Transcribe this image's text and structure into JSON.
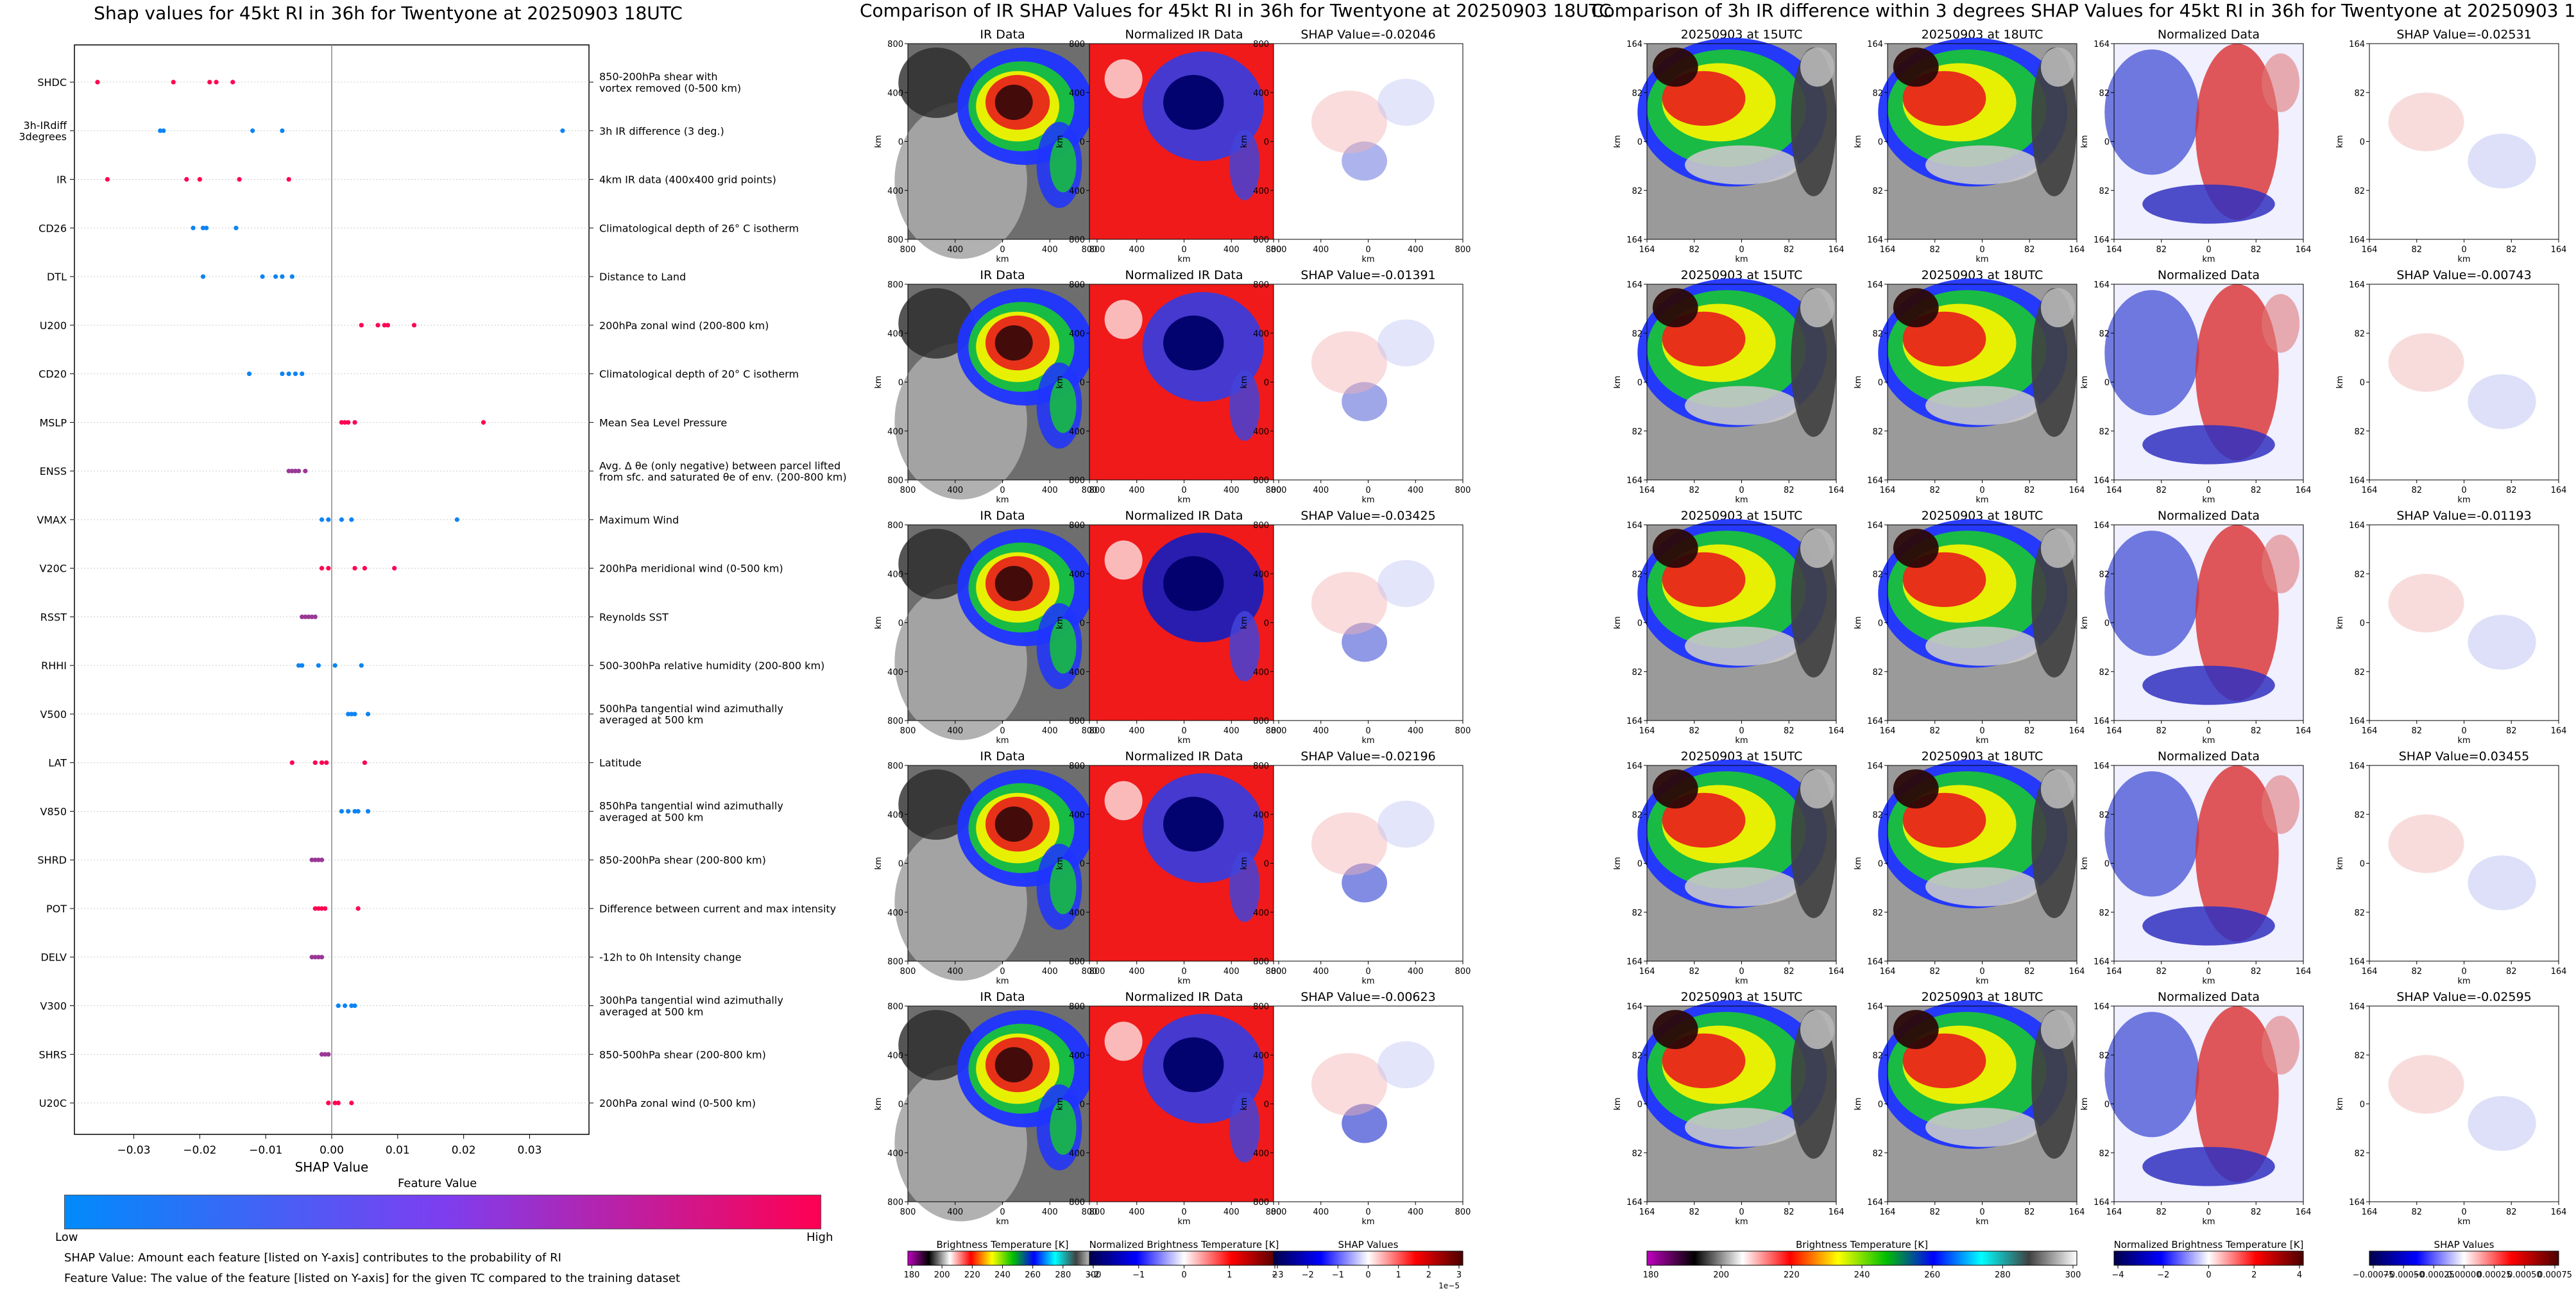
{
  "shap_panel": {
    "title": "Shap values for 45kt RI in 36h for Twentyone at 20250903 18UTC",
    "xlabel": "SHAP Value",
    "colorbar": {
      "title": "Feature Value",
      "low": "Low",
      "high": "High",
      "colors": [
        "#008bfb",
        "#ff0052"
      ]
    },
    "notes": [
      "SHAP Value: Amount each feature [listed on Y-axis] contributes to the probability of RI",
      "Feature Value: The value of the feature [listed on Y-axis] for the given TC compared to the training dataset"
    ]
  },
  "ir_panel": {
    "title": "Comparison of IR SHAP Values for 45kt RI in 36h for Twentyone at 20250903 18UTC",
    "col_titles": [
      "IR Data",
      "Normalized IR Data"
    ],
    "shap_titles": [
      "SHAP Value=-0.02046",
      "SHAP Value=-0.01391",
      "SHAP Value=-0.03425",
      "SHAP Value=-0.02196",
      "SHAP Value=-0.00623"
    ],
    "axis_label": "km",
    "ticks_x": [
      "800",
      "400",
      "0",
      "400",
      "800"
    ],
    "ticks_y": [
      "800",
      "400",
      "0",
      "400",
      "800"
    ],
    "colorbars": [
      {
        "label": "Brightness Temperature [K]",
        "ticks": [
          "180",
          "200",
          "220",
          "240",
          "260",
          "280",
          "300"
        ]
      },
      {
        "label": "Normalized Brightness Temperature [K]",
        "ticks": [
          "−2",
          "−1",
          "0",
          "1",
          "2"
        ]
      },
      {
        "label": "SHAP Values",
        "ticks": [
          "−3",
          "−2",
          "−1",
          "0",
          "1",
          "2",
          "3"
        ],
        "offset": "1e−5"
      }
    ]
  },
  "diff_panel": {
    "title": "Comparison of 3h IR difference within 3 degrees SHAP Values for 45kt RI in 36h for Twentyone at 20250903 18UTC",
    "col_titles": [
      "20250903 at 15UTC",
      "20250903 at 18UTC",
      "Normalized Data"
    ],
    "shap_titles": [
      "SHAP Value=-0.02531",
      "SHAP Value=-0.00743",
      "SHAP Value=-0.01193",
      "SHAP Value=0.03455",
      "SHAP Value=-0.02595"
    ],
    "axis_label": "km",
    "ticks_x": [
      "164",
      "82",
      "0",
      "82",
      "164"
    ],
    "ticks_y": [
      "164",
      "82",
      "0",
      "82",
      "164"
    ],
    "colorbars": [
      {
        "label": "Brightness Temperature [K]",
        "ticks": [
          "180",
          "200",
          "220",
          "240",
          "260",
          "280",
          "300"
        ]
      },
      {
        "label": "Normalized Brightness Temperature [K]",
        "ticks": [
          "−4",
          "−2",
          "0",
          "2",
          "4"
        ]
      },
      {
        "label": "SHAP Values",
        "ticks": [
          "−0.00075",
          "−0.00050",
          "−0.00025",
          "0.00000",
          "0.00025",
          "0.00050",
          "0.00075"
        ]
      }
    ]
  },
  "chart_data": [
    {
      "type": "scatter",
      "title": "Shap values for 45kt RI in 36h for Twentyone at 20250903 18UTC",
      "xlabel": "SHAP Value",
      "ylabel": "",
      "xlim": [
        -0.039,
        0.039
      ],
      "xticks": [
        -0.03,
        -0.02,
        -0.01,
        0.0,
        0.01,
        0.02,
        0.03
      ],
      "xtick_labels": [
        "−0.03",
        "−0.02",
        "−0.01",
        "0.00",
        "0.01",
        "0.02",
        "0.03"
      ],
      "legend": "colorbar-bottom",
      "features": [
        {
          "name": "SHDC",
          "desc": "850-200hPa shear with\nvortex removed (0-500 km)",
          "points": [
            [
              -0.0355,
              1
            ],
            [
              -0.024,
              1
            ],
            [
              -0.0185,
              1
            ],
            [
              -0.0175,
              1
            ],
            [
              -0.015,
              1
            ]
          ]
        },
        {
          "name": "3h-IRdiff\n3degrees",
          "desc": "3h IR difference (3 deg.)",
          "points": [
            [
              -0.026,
              0.05
            ],
            [
              -0.0255,
              0.05
            ],
            [
              -0.012,
              0.05
            ],
            [
              -0.0075,
              0.05
            ],
            [
              0.035,
              0.05
            ]
          ]
        },
        {
          "name": "IR",
          "desc": "4km IR data (400x400 grid points)",
          "points": [
            [
              -0.034,
              1
            ],
            [
              -0.022,
              1
            ],
            [
              -0.02,
              1
            ],
            [
              -0.014,
              1
            ],
            [
              -0.0065,
              1
            ]
          ]
        },
        {
          "name": "CD26",
          "desc": "Climatological depth of 26° C isotherm",
          "points": [
            [
              -0.021,
              0.05
            ],
            [
              -0.0195,
              0.05
            ],
            [
              -0.019,
              0.05
            ],
            [
              -0.0145,
              0.05
            ]
          ]
        },
        {
          "name": "DTL",
          "desc": "Distance to Land",
          "points": [
            [
              -0.0195,
              0.05
            ],
            [
              -0.0105,
              0.05
            ],
            [
              -0.0085,
              0.05
            ],
            [
              -0.0075,
              0.05
            ],
            [
              -0.006,
              0.05
            ]
          ]
        },
        {
          "name": "U200",
          "desc": "200hPa zonal wind (200-800 km)",
          "points": [
            [
              0.0045,
              1
            ],
            [
              0.007,
              1
            ],
            [
              0.008,
              1
            ],
            [
              0.0085,
              1
            ],
            [
              0.0125,
              1
            ]
          ]
        },
        {
          "name": "CD20",
          "desc": "Climatological depth of 20° C isotherm",
          "points": [
            [
              -0.0125,
              0.05
            ],
            [
              -0.0075,
              0.05
            ],
            [
              -0.0065,
              0.05
            ],
            [
              -0.0055,
              0.05
            ],
            [
              -0.0045,
              0.05
            ]
          ]
        },
        {
          "name": "MSLP",
          "desc": "Mean Sea Level Pressure",
          "points": [
            [
              0.0015,
              1
            ],
            [
              0.002,
              1
            ],
            [
              0.0025,
              1
            ],
            [
              0.0035,
              1
            ],
            [
              0.023,
              1
            ]
          ]
        },
        {
          "name": "ENSS",
          "desc": "Avg. Δ θe (only negative) between parcel lifted\nfrom sfc. and saturated θe of env. (200-800 km)",
          "points": [
            [
              -0.0065,
              0.6
            ],
            [
              -0.006,
              0.6
            ],
            [
              -0.0055,
              0.6
            ],
            [
              -0.005,
              0.6
            ],
            [
              -0.004,
              0.6
            ]
          ]
        },
        {
          "name": "VMAX",
          "desc": "Maximum Wind",
          "points": [
            [
              -0.0015,
              0.05
            ],
            [
              -0.0005,
              0.05
            ],
            [
              0.0015,
              0.05
            ],
            [
              0.003,
              0.05
            ],
            [
              0.019,
              0.05
            ]
          ]
        },
        {
          "name": "V20C",
          "desc": "200hPa meridional wind (0-500 km)",
          "points": [
            [
              -0.0015,
              1
            ],
            [
              -0.0005,
              1
            ],
            [
              0.0035,
              1
            ],
            [
              0.005,
              1
            ],
            [
              0.0095,
              1
            ]
          ]
        },
        {
          "name": "RSST",
          "desc": "Reynolds SST",
          "points": [
            [
              -0.0045,
              0.6
            ],
            [
              -0.004,
              0.6
            ],
            [
              -0.0035,
              0.6
            ],
            [
              -0.003,
              0.6
            ],
            [
              -0.0025,
              0.6
            ]
          ]
        },
        {
          "name": "RHHI",
          "desc": "500-300hPa relative humidity (200-800 km)",
          "points": [
            [
              -0.005,
              0.05
            ],
            [
              -0.0045,
              0.05
            ],
            [
              -0.002,
              0.05
            ],
            [
              0.0005,
              0.05
            ],
            [
              0.0045,
              0.05
            ]
          ]
        },
        {
          "name": "V500",
          "desc": "500hPa tangential wind azimuthally\naveraged at 500 km",
          "points": [
            [
              0.0025,
              0.05
            ],
            [
              0.003,
              0.05
            ],
            [
              0.0035,
              0.05
            ],
            [
              0.0055,
              0.05
            ]
          ]
        },
        {
          "name": "LAT",
          "desc": "Latitude",
          "points": [
            [
              -0.006,
              1
            ],
            [
              -0.0025,
              1
            ],
            [
              -0.0015,
              1
            ],
            [
              -0.0008,
              1
            ],
            [
              0.005,
              1
            ]
          ]
        },
        {
          "name": "V850",
          "desc": "850hPa tangential wind azimuthally\naveraged at 500 km",
          "points": [
            [
              0.0015,
              0.05
            ],
            [
              0.0025,
              0.05
            ],
            [
              0.0035,
              0.05
            ],
            [
              0.004,
              0.05
            ],
            [
              0.0055,
              0.05
            ]
          ]
        },
        {
          "name": "SHRD",
          "desc": "850-200hPa shear (200-800 km)",
          "points": [
            [
              -0.003,
              0.6
            ],
            [
              -0.0025,
              0.6
            ],
            [
              -0.002,
              0.6
            ],
            [
              -0.0015,
              0.6
            ]
          ]
        },
        {
          "name": "POT",
          "desc": "Difference between current and max intensity",
          "points": [
            [
              -0.0025,
              1
            ],
            [
              -0.002,
              1
            ],
            [
              -0.0015,
              1
            ],
            [
              -0.001,
              1
            ],
            [
              0.004,
              1
            ]
          ]
        },
        {
          "name": "DELV",
          "desc": "-12h to 0h Intensity change",
          "points": [
            [
              -0.003,
              0.6
            ],
            [
              -0.0025,
              0.6
            ],
            [
              -0.002,
              0.6
            ],
            [
              -0.0015,
              0.6
            ]
          ]
        },
        {
          "name": "V300",
          "desc": "300hPa tangential wind azimuthally\naveraged at 500 km",
          "points": [
            [
              0.001,
              0.05
            ],
            [
              0.002,
              0.05
            ],
            [
              0.003,
              0.05
            ],
            [
              0.0035,
              0.05
            ]
          ]
        },
        {
          "name": "SHRS",
          "desc": "850-500hPa shear (200-800 km)",
          "points": [
            [
              -0.0015,
              0.6
            ],
            [
              -0.001,
              0.6
            ],
            [
              -0.0005,
              0.6
            ]
          ]
        },
        {
          "name": "U20C",
          "desc": "200hPa zonal wind (0-500 km)",
          "points": [
            [
              -0.0005,
              1
            ],
            [
              0.0005,
              1
            ],
            [
              0.001,
              1
            ],
            [
              0.003,
              1
            ]
          ]
        }
      ]
    }
  ]
}
